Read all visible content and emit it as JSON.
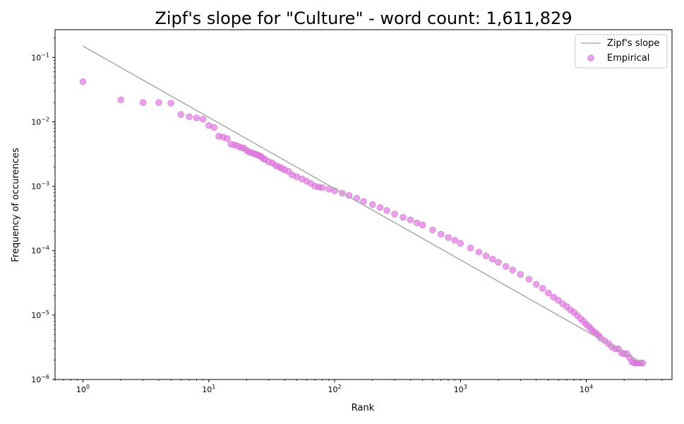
{
  "chart_data": {
    "type": "scatter",
    "title": "Zipf's slope for \"Culture\" - word count: 1,611,829",
    "xlabel": "Rank",
    "ylabel": "Frequency of occurences",
    "xscale": "log",
    "yscale": "log",
    "xlim": [
      0.6,
      48000
    ],
    "ylim": [
      1e-06,
      0.27
    ],
    "x_ticks": [
      {
        "value": 1,
        "base": "10",
        "exp": "0"
      },
      {
        "value": 10,
        "base": "10",
        "exp": "1"
      },
      {
        "value": 100,
        "base": "10",
        "exp": "2"
      },
      {
        "value": 1000,
        "base": "10",
        "exp": "3"
      },
      {
        "value": 10000,
        "base": "10",
        "exp": "4"
      }
    ],
    "y_ticks": [
      {
        "value": 1e-06,
        "base": "10",
        "exp": "−6"
      },
      {
        "value": 1e-05,
        "base": "10",
        "exp": "−5"
      },
      {
        "value": 0.0001,
        "base": "10",
        "exp": "−4"
      },
      {
        "value": 0.001,
        "base": "10",
        "exp": "−3"
      },
      {
        "value": 0.01,
        "base": "10",
        "exp": "−2"
      },
      {
        "value": 0.1,
        "base": "10",
        "exp": "−1"
      }
    ],
    "grid": false,
    "legend_position": "top-right",
    "series": [
      {
        "name": "Zipf's slope",
        "kind": "line",
        "color": "#b0aeb0",
        "x": [
          1,
          28000
        ],
        "y": [
          0.15,
          1.8e-06
        ]
      },
      {
        "name": "Empirical",
        "kind": "scatter",
        "color": "#e07ae0",
        "edge_color": "#cc55cc",
        "x": [
          1,
          2,
          3,
          4,
          5,
          6,
          7,
          8,
          9,
          10,
          11,
          12,
          13,
          14,
          15,
          16,
          17,
          18,
          19,
          20,
          21,
          22,
          23,
          24,
          25,
          26,
          27,
          28,
          30,
          32,
          34,
          36,
          38,
          40,
          43,
          46,
          50,
          55,
          60,
          65,
          70,
          75,
          80,
          90,
          100,
          115,
          130,
          150,
          170,
          200,
          230,
          260,
          300,
          350,
          400,
          450,
          500,
          600,
          700,
          800,
          900,
          1000,
          1200,
          1400,
          1600,
          1800,
          2000,
          2300,
          2600,
          3000,
          3500,
          4000,
          4500,
          5000,
          5500,
          6000,
          6500,
          7000,
          7500,
          8000,
          8500,
          9000,
          9500,
          10000,
          10500,
          11000,
          11500,
          12000,
          12500,
          13000,
          14000,
          15000,
          16000,
          17000,
          18000,
          19000,
          20000,
          21000,
          22000,
          23000,
          24000,
          25000,
          26000,
          27000,
          28000
        ],
        "y": [
          0.042,
          0.022,
          0.02,
          0.02,
          0.0195,
          0.013,
          0.012,
          0.0115,
          0.011,
          0.0088,
          0.0082,
          0.006,
          0.0058,
          0.0055,
          0.0045,
          0.0044,
          0.0042,
          0.004,
          0.0039,
          0.0036,
          0.0034,
          0.0033,
          0.0032,
          0.0031,
          0.003,
          0.0029,
          0.0027,
          0.0026,
          0.0024,
          0.0023,
          0.0021,
          0.002,
          0.0019,
          0.0018,
          0.0017,
          0.0015,
          0.0014,
          0.0013,
          0.0012,
          0.0011,
          0.001,
          0.00097,
          0.00095,
          0.0009,
          0.00085,
          0.00078,
          0.00072,
          0.00065,
          0.00058,
          0.00052,
          0.00047,
          0.00042,
          0.00037,
          0.00033,
          0.0003,
          0.00027,
          0.00025,
          0.00021,
          0.00018,
          0.00016,
          0.000145,
          0.00013,
          0.00011,
          9.5e-05,
          8.3e-05,
          7.4e-05,
          6.6e-05,
          5.7e-05,
          5e-05,
          4.3e-05,
          3.6e-05,
          3e-05,
          2.6e-05,
          2.2e-05,
          1.9e-05,
          1.7e-05,
          1.5e-05,
          1.35e-05,
          1.2e-05,
          1.1e-05,
          9.8e-06,
          8.8e-06,
          8e-06,
          7.2e-06,
          6.6e-06,
          6e-06,
          5.5e-06,
          5.2e-06,
          4.8e-06,
          4.4e-06,
          4e-06,
          3.6e-06,
          3.2e-06,
          3e-06,
          3e-06,
          2.6e-06,
          2.5e-06,
          2.5e-06,
          2.2e-06,
          1.9e-06,
          1.8e-06,
          1.8e-06,
          1.8e-06,
          1.8e-06,
          1.8e-06
        ]
      }
    ]
  }
}
